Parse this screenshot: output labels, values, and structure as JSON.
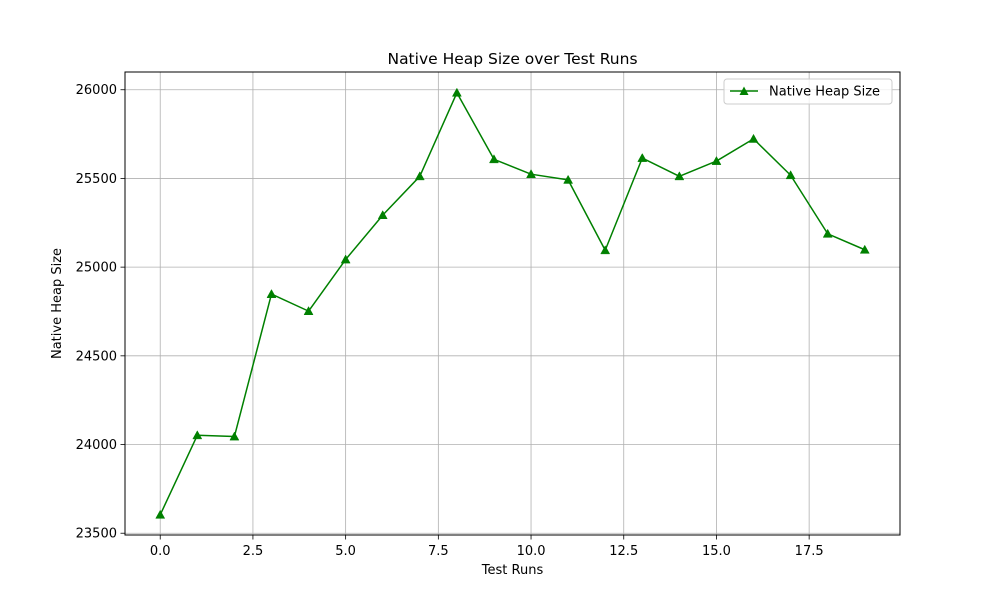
{
  "chart_data": {
    "type": "line",
    "title": "Native Heap Size over Test Runs",
    "xlabel": "Test Runs",
    "ylabel": "Native Heap Size",
    "xlim": [
      -0.95,
      19.95
    ],
    "ylim": [
      23490,
      26100
    ],
    "x_ticks": [
      0.0,
      2.5,
      5.0,
      7.5,
      10.0,
      12.5,
      15.0,
      17.5
    ],
    "x_tick_labels": [
      "0.0",
      "2.5",
      "5.0",
      "7.5",
      "10.0",
      "12.5",
      "15.0",
      "17.5"
    ],
    "y_ticks": [
      23500,
      24000,
      24500,
      25000,
      25500,
      26000
    ],
    "y_tick_labels": [
      "23500",
      "24000",
      "24500",
      "25000",
      "25500",
      "26000"
    ],
    "grid": true,
    "legend_position": "top-right",
    "series": [
      {
        "name": "Native Heap Size",
        "color": "#008000",
        "marker": "triangle-up",
        "x": [
          0,
          1,
          2,
          3,
          4,
          5,
          6,
          7,
          8,
          9,
          10,
          11,
          12,
          13,
          14,
          15,
          16,
          17,
          18,
          19
        ],
        "y": [
          23604,
          24052,
          24045,
          24848,
          24752,
          25043,
          25293,
          25512,
          25983,
          25608,
          25524,
          25492,
          25095,
          25615,
          25512,
          25598,
          25723,
          25518,
          25188,
          25098
        ]
      }
    ]
  }
}
